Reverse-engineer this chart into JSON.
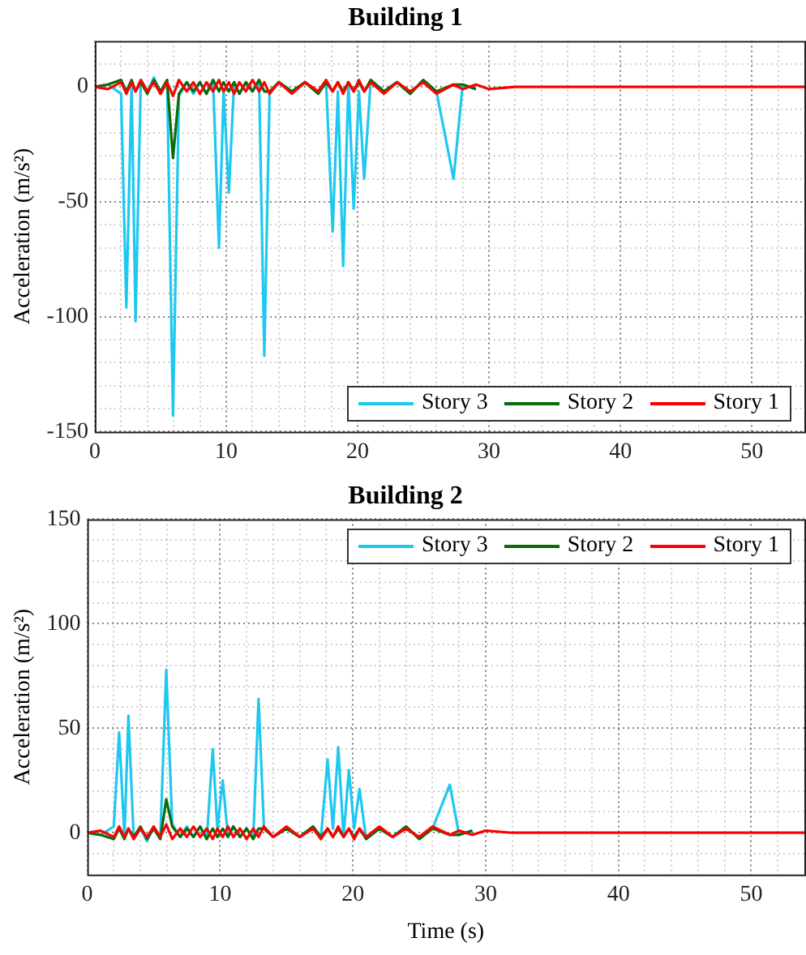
{
  "chart_data": [
    {
      "type": "line",
      "title": "Building 1",
      "ylabel": "Acceleration (m/s²)",
      "xlim": [
        0,
        54
      ],
      "ylim": [
        -150,
        20
      ],
      "xticks": [
        0,
        {
          "value": 2,
          "label": null
        },
        {
          "value": 4,
          "label": null
        },
        {
          "value": 6,
          "label": null
        },
        {
          "value": 8,
          "label": null
        },
        10,
        {
          "value": 12,
          "label": null
        },
        {
          "value": 14,
          "label": null
        },
        {
          "value": 16,
          "label": null
        },
        {
          "value": 18,
          "label": null
        },
        20,
        {
          "value": 22,
          "label": null
        },
        {
          "value": 24,
          "label": null
        },
        {
          "value": 26,
          "label": null
        },
        {
          "value": 28,
          "label": null
        },
        30,
        {
          "value": 32,
          "label": null
        },
        {
          "value": 34,
          "label": null
        },
        {
          "value": 36,
          "label": null
        },
        {
          "value": 38,
          "label": null
        },
        40,
        {
          "value": 42,
          "label": null
        },
        {
          "value": 44,
          "label": null
        },
        {
          "value": 46,
          "label": null
        },
        {
          "value": 48,
          "label": null
        },
        50,
        {
          "value": 52,
          "label": null
        }
      ],
      "yticks": [
        -150,
        {
          "value": -140,
          "label": null
        },
        {
          "value": -130,
          "label": null
        },
        {
          "value": -120,
          "label": null
        },
        {
          "value": -110,
          "label": null
        },
        -100,
        {
          "value": -90,
          "label": null
        },
        {
          "value": -80,
          "label": null
        },
        {
          "value": -70,
          "label": null
        },
        {
          "value": -60,
          "label": null
        },
        -50,
        {
          "value": -40,
          "label": null
        },
        {
          "value": -30,
          "label": null
        },
        {
          "value": -20,
          "label": null
        },
        {
          "value": -10,
          "label": null
        },
        0,
        {
          "value": 10,
          "label": null
        }
      ],
      "x": [
        0,
        1,
        2,
        2.4,
        2.8,
        3.1,
        3.5,
        4,
        4.5,
        5,
        5.5,
        5.95,
        6.4,
        7,
        7.5,
        8,
        8.5,
        9,
        9.45,
        9.8,
        10.2,
        10.6,
        11,
        11.5,
        12,
        12.5,
        12.9,
        13.3,
        14,
        15,
        16,
        17,
        17.6,
        18.1,
        18.5,
        18.9,
        19.3,
        19.7,
        20.1,
        20.5,
        21,
        22,
        23,
        24,
        25,
        26,
        27.3,
        28,
        29,
        30,
        32,
        35,
        40,
        45,
        50,
        54
      ],
      "series": [
        {
          "name": "Story 3",
          "color": "#1ec8f0",
          "values": [
            0,
            1,
            -3,
            -96,
            2,
            -102,
            3,
            -2,
            4,
            -3,
            3,
            -143,
            -4,
            2,
            -3,
            2,
            -3,
            3,
            -70,
            -2,
            -46,
            2,
            -3,
            2,
            -2,
            3,
            -117,
            -3,
            2,
            -2,
            2,
            -3,
            2,
            -63,
            -2,
            -78,
            2,
            -53,
            -2,
            -40,
            3,
            -2,
            2,
            -3,
            3,
            -2,
            -40,
            1,
            -1,
            null,
            null,
            null,
            null,
            null,
            null,
            null
          ]
        },
        {
          "name": "Story 2",
          "color": "#0b6b0b",
          "values": [
            0,
            1,
            3,
            -2,
            3,
            -2,
            2,
            -3,
            3,
            -2,
            3,
            -31,
            -3,
            2,
            -2,
            2,
            -3,
            3,
            -2,
            2,
            -2,
            2,
            -3,
            2,
            -2,
            3,
            -2,
            -2,
            2,
            -2,
            2,
            -3,
            2,
            -2,
            2,
            -2,
            2,
            -2,
            2,
            -2,
            3,
            -2,
            2,
            -3,
            3,
            -2,
            1,
            1,
            -1,
            null,
            null,
            null,
            null,
            null,
            null,
            null
          ]
        },
        {
          "name": "Story 1",
          "color": "#ff0000",
          "values": [
            0,
            -1,
            2,
            -3,
            2,
            -2,
            3,
            -2,
            2,
            -3,
            2,
            -4,
            3,
            -2,
            2,
            -3,
            2,
            -2,
            3,
            -2,
            2,
            -3,
            2,
            -2,
            3,
            -2,
            2,
            -3,
            2,
            -3,
            2,
            -2,
            3,
            -2,
            2,
            -3,
            2,
            -2,
            3,
            -2,
            2,
            -3,
            2,
            -2,
            2,
            -3,
            1,
            -1,
            1,
            -1,
            0,
            0,
            0,
            0,
            0,
            0
          ]
        }
      ],
      "grid": true,
      "legend": "bottom right",
      "marker": "none",
      "line_style": "solid"
    },
    {
      "type": "line",
      "title": "Building 2",
      "xlabel": "Time (s)",
      "ylabel": "Acceleration (m/s²)",
      "xlim": [
        0,
        54
      ],
      "ylim": [
        -20,
        150
      ],
      "xticks": [
        0,
        {
          "value": 2,
          "label": null
        },
        {
          "value": 4,
          "label": null
        },
        {
          "value": 6,
          "label": null
        },
        {
          "value": 8,
          "label": null
        },
        10,
        {
          "value": 12,
          "label": null
        },
        {
          "value": 14,
          "label": null
        },
        {
          "value": 16,
          "label": null
        },
        {
          "value": 18,
          "label": null
        },
        20,
        {
          "value": 22,
          "label": null
        },
        {
          "value": 24,
          "label": null
        },
        {
          "value": 26,
          "label": null
        },
        {
          "value": 28,
          "label": null
        },
        30,
        {
          "value": 32,
          "label": null
        },
        {
          "value": 34,
          "label": null
        },
        {
          "value": 36,
          "label": null
        },
        {
          "value": 38,
          "label": null
        },
        40,
        {
          "value": 42,
          "label": null
        },
        {
          "value": 44,
          "label": null
        },
        {
          "value": 46,
          "label": null
        },
        {
          "value": 48,
          "label": null
        },
        50,
        {
          "value": 52,
          "label": null
        }
      ],
      "yticks": [
        {
          "value": -10,
          "label": null
        },
        0,
        {
          "value": 10,
          "label": null
        },
        {
          "value": 20,
          "label": null
        },
        {
          "value": 30,
          "label": null
        },
        {
          "value": 40,
          "label": null
        },
        50,
        {
          "value": 60,
          "label": null
        },
        {
          "value": 70,
          "label": null
        },
        {
          "value": 80,
          "label": null
        },
        {
          "value": 90,
          "label": null
        },
        100,
        {
          "value": 110,
          "label": null
        },
        {
          "value": 120,
          "label": null
        },
        {
          "value": 130,
          "label": null
        },
        {
          "value": 140,
          "label": null
        },
        150
      ],
      "x": [
        0,
        1,
        2,
        2.4,
        2.8,
        3.1,
        3.5,
        4,
        4.5,
        5,
        5.5,
        5.95,
        6.4,
        7,
        7.5,
        8,
        8.5,
        9,
        9.45,
        9.8,
        10.2,
        10.6,
        11,
        11.5,
        12,
        12.5,
        12.9,
        13.3,
        14,
        15,
        16,
        17,
        17.6,
        18.1,
        18.5,
        18.9,
        19.3,
        19.7,
        20.1,
        20.5,
        21,
        22,
        23,
        24,
        25,
        26,
        27.3,
        28,
        29,
        30,
        32,
        35,
        40,
        45,
        50,
        54
      ],
      "series": [
        {
          "name": "Story 3",
          "color": "#1ec8f0",
          "values": [
            0,
            -1,
            3,
            48,
            -2,
            56,
            -3,
            2,
            -4,
            3,
            -3,
            78,
            4,
            -2,
            3,
            -2,
            3,
            -3,
            40,
            2,
            25,
            -2,
            3,
            -2,
            2,
            -3,
            64,
            3,
            -2,
            2,
            -2,
            3,
            -2,
            35,
            2,
            41,
            -2,
            30,
            2,
            21,
            -3,
            2,
            -2,
            3,
            -3,
            2,
            23,
            -1,
            1,
            null,
            null,
            null,
            null,
            null,
            null,
            null
          ]
        },
        {
          "name": "Story 2",
          "color": "#0b6b0b",
          "values": [
            0,
            -1,
            -3,
            2,
            -3,
            2,
            -2,
            3,
            -3,
            2,
            -3,
            16,
            3,
            -2,
            2,
            -2,
            3,
            -3,
            2,
            -2,
            2,
            -2,
            3,
            -2,
            2,
            -3,
            2,
            2,
            -2,
            2,
            -2,
            3,
            -2,
            2,
            -2,
            2,
            -2,
            2,
            -2,
            2,
            -3,
            2,
            -2,
            3,
            -3,
            2,
            -1,
            -1,
            1,
            null,
            null,
            null,
            null,
            null,
            null,
            null
          ]
        },
        {
          "name": "Story 1",
          "color": "#ff0000",
          "values": [
            0,
            1,
            -2,
            3,
            -2,
            2,
            -3,
            2,
            -2,
            3,
            -2,
            4,
            -3,
            2,
            -2,
            3,
            -2,
            2,
            -3,
            2,
            -2,
            3,
            -2,
            2,
            -3,
            2,
            -2,
            3,
            -2,
            3,
            -2,
            2,
            -3,
            2,
            -2,
            3,
            -2,
            2,
            -3,
            2,
            -2,
            3,
            -2,
            2,
            -2,
            3,
            -1,
            1,
            -1,
            1,
            0,
            0,
            0,
            0,
            0,
            0
          ]
        }
      ],
      "grid": true,
      "legend": "top right",
      "marker": "none",
      "line_style": "solid"
    }
  ]
}
